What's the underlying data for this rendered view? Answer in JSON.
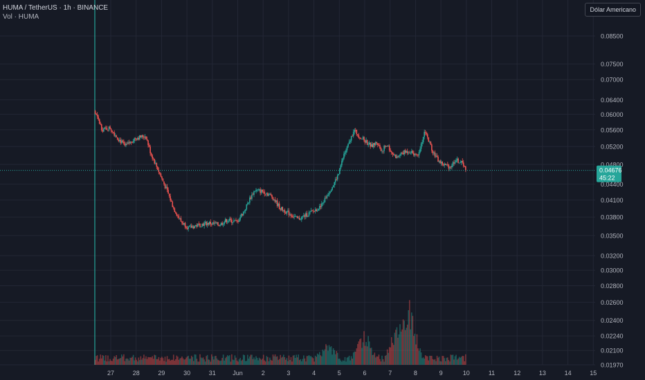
{
  "legend": {
    "symbol_line": "HUMA / TetherUS · 1h · BINANCE",
    "volume_line": "Vol · HUMA"
  },
  "currency_button": "Dólar Americano",
  "price_tag": {
    "price": "0.04676",
    "countdown": "45:22"
  },
  "colors": {
    "background": "#161a25",
    "up": "#26a69a",
    "down": "#ef5350",
    "grid": "#232735",
    "text": "#b2b5be"
  },
  "chart_data": {
    "type": "candlestick",
    "symbol": "HUMA / TetherUS",
    "interval": "1h",
    "exchange": "BINANCE",
    "log_scale": true,
    "y_ticks": [
      "0.08500",
      "0.07500",
      "0.07000",
      "0.06400",
      "0.06000",
      "0.05600",
      "0.05200",
      "0.04800",
      "0.04400",
      "0.04100",
      "0.03800",
      "0.03500",
      "0.03200",
      "0.03000",
      "0.02800",
      "0.02600",
      "0.02400",
      "0.02240",
      "0.02100",
      "0.01970"
    ],
    "x_ticks": [
      "27",
      "28",
      "29",
      "30",
      "31",
      "Jun",
      "2",
      "3",
      "4",
      "5",
      "6",
      "7",
      "8",
      "9",
      "10",
      "11",
      "12",
      "13",
      "14",
      "15"
    ],
    "x_range_days": [
      26.9,
      46.0
    ],
    "current_price": 0.04676,
    "price_path": [
      [
        26.0,
        0.074
      ],
      [
        26.1,
        0.07
      ],
      [
        26.3,
        0.068
      ],
      [
        26.5,
        0.063
      ],
      [
        26.8,
        0.062
      ],
      [
        27.2,
        0.056
      ],
      [
        27.5,
        0.0565
      ],
      [
        27.8,
        0.054
      ],
      [
        28.1,
        0.052
      ],
      [
        28.5,
        0.054
      ],
      [
        28.9,
        0.0545
      ],
      [
        29.1,
        0.0505
      ],
      [
        29.3,
        0.048
      ],
      [
        29.5,
        0.0455
      ],
      [
        29.8,
        0.042
      ],
      [
        30.0,
        0.0395
      ],
      [
        30.3,
        0.0372
      ],
      [
        30.6,
        0.0362
      ],
      [
        31.0,
        0.0367
      ],
      [
        31.4,
        0.037
      ],
      [
        31.8,
        0.0367
      ],
      [
        32.1,
        0.0375
      ],
      [
        32.5,
        0.0372
      ],
      [
        32.8,
        0.0392
      ],
      [
        33.0,
        0.0412
      ],
      [
        33.2,
        0.0428
      ],
      [
        33.6,
        0.0425
      ],
      [
        33.9,
        0.0415
      ],
      [
        34.2,
        0.0395
      ],
      [
        34.6,
        0.0385
      ],
      [
        34.9,
        0.0376
      ],
      [
        35.2,
        0.0383
      ],
      [
        35.5,
        0.039
      ],
      [
        35.8,
        0.0398
      ],
      [
        36.0,
        0.0415
      ],
      [
        36.3,
        0.044
      ],
      [
        36.5,
        0.046
      ],
      [
        36.7,
        0.05
      ],
      [
        36.9,
        0.0525
      ],
      [
        37.1,
        0.056
      ],
      [
        37.3,
        0.0545
      ],
      [
        37.5,
        0.0535
      ],
      [
        37.8,
        0.052
      ],
      [
        38.0,
        0.053
      ],
      [
        38.2,
        0.051
      ],
      [
        38.4,
        0.0525
      ],
      [
        38.6,
        0.0505
      ],
      [
        38.8,
        0.0495
      ],
      [
        39.0,
        0.0505
      ],
      [
        39.3,
        0.051
      ],
      [
        39.6,
        0.05
      ],
      [
        39.8,
        0.0535
      ],
      [
        39.9,
        0.056
      ],
      [
        40.0,
        0.054
      ],
      [
        40.2,
        0.051
      ],
      [
        40.4,
        0.049
      ],
      [
        40.6,
        0.048
      ],
      [
        40.9,
        0.0475
      ],
      [
        41.1,
        0.049
      ],
      [
        41.3,
        0.0485
      ],
      [
        41.5,
        0.0476
      ]
    ],
    "volume_spikes": [
      [
        37.5,
        4.2
      ],
      [
        38.8,
        4.5
      ],
      [
        39.3,
        8.0
      ],
      [
        36.1,
        2.0
      ],
      [
        26.1,
        3.2
      ]
    ]
  }
}
